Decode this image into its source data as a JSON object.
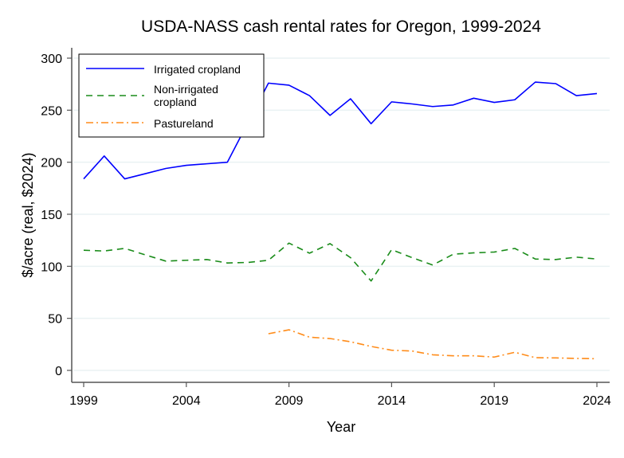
{
  "chart_data": {
    "type": "line",
    "title": "USDA-NASS cash rental rates for Oregon, 1999-2024",
    "xlabel": "Year",
    "ylabel": "$/acre (real, $2024)",
    "xlim": [
      1999,
      2024
    ],
    "ylim": [
      0,
      300
    ],
    "xticks": [
      "1999",
      "2004",
      "2009",
      "2014",
      "2019",
      "2024"
    ],
    "yticks": [
      "0",
      "50",
      "100",
      "150",
      "200",
      "250",
      "300"
    ],
    "grid": true,
    "legend_position": "top-left",
    "series": [
      {
        "name": "Irrigated cropland",
        "color": "#0000ff",
        "style": "solid",
        "x": [
          1999,
          2000,
          2001,
          2002,
          2003,
          2004,
          2005,
          2006,
          2007,
          2008,
          2009,
          2010,
          2011,
          2012,
          2013,
          2014,
          2015,
          2016,
          2017,
          2018,
          2019,
          2020,
          2021,
          2022,
          2023,
          2024
        ],
        "values": [
          184,
          206,
          184,
          189,
          194,
          197,
          198.5,
          200,
          238,
          276,
          274,
          264,
          245,
          261,
          237,
          258,
          256,
          253.5,
          255,
          261.5,
          257.5,
          260,
          277,
          275.5,
          264,
          266
        ]
      },
      {
        "name": "Non-irrigated cropland",
        "name_lines": [
          "Non-irrigated",
          "cropland"
        ],
        "color": "#1a8c1a",
        "style": "dashed",
        "x": [
          1999,
          2000,
          2001,
          2002,
          2003,
          2004,
          2005,
          2006,
          2007,
          2008,
          2009,
          2010,
          2011,
          2012,
          2013,
          2014,
          2015,
          2016,
          2017,
          2018,
          2019,
          2020,
          2021,
          2022,
          2023,
          2024
        ],
        "values": [
          115.4,
          114.7,
          117.2,
          111,
          105,
          105.8,
          106.5,
          103.2,
          103.7,
          105.8,
          122.3,
          112.6,
          121.8,
          108.3,
          85.9,
          116,
          108.3,
          101.2,
          111.6,
          112.9,
          113.7,
          117.2,
          107,
          106.5,
          108.8,
          107
        ]
      },
      {
        "name": "Pastureland",
        "color": "#ff8c1a",
        "style": "dashdot",
        "x": [
          2008,
          2009,
          2010,
          2011,
          2012,
          2013,
          2014,
          2015,
          2016,
          2017,
          2018,
          2019,
          2020,
          2021,
          2022,
          2023,
          2024
        ],
        "values": [
          35.2,
          39,
          31.9,
          30.6,
          27.5,
          23,
          19.4,
          18.6,
          15,
          14,
          14,
          12.8,
          17.4,
          12.2,
          12,
          11.5,
          11.2
        ]
      }
    ]
  }
}
